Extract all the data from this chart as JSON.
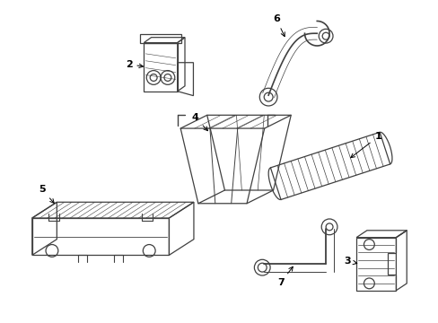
{
  "background_color": "#ffffff",
  "line_color": "#404040",
  "figsize": [
    4.89,
    3.6
  ],
  "dpi": 100
}
